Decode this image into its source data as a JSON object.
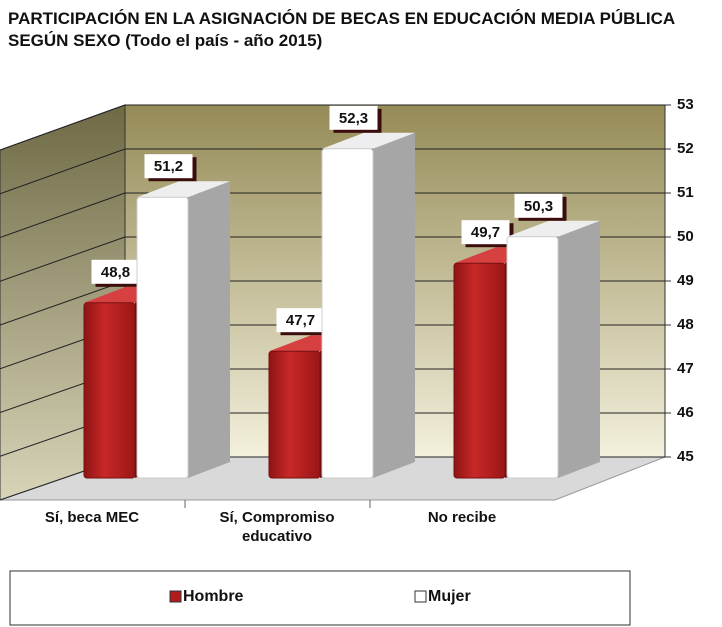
{
  "chart_data": {
    "type": "bar3d",
    "title": "PARTICIPACIÓN EN LA ASIGNACIÓN DE BECAS EN EDUCACIÓN MEDIA PÚBLICA SEGÚN SEXO (Todo el país - año 2015)",
    "categories": [
      "Sí, beca MEC",
      "Sí, Compromiso educativo",
      "No recibe"
    ],
    "series": [
      {
        "name": "Hombre",
        "color": "#b01c1c",
        "values": [
          48.8,
          47.7,
          49.7
        ],
        "value_labels": [
          "48,8",
          "47,7",
          "49,7"
        ]
      },
      {
        "name": "Mujer",
        "color": "#ffffff",
        "values": [
          51.2,
          52.3,
          50.3
        ],
        "value_labels": [
          "51,2",
          "52,3",
          "50,3"
        ]
      }
    ],
    "ylim": [
      45,
      53
    ],
    "yticks": [
      45,
      46,
      47,
      48,
      49,
      50,
      51,
      52,
      53
    ],
    "grid": true,
    "legend": "bottom"
  }
}
